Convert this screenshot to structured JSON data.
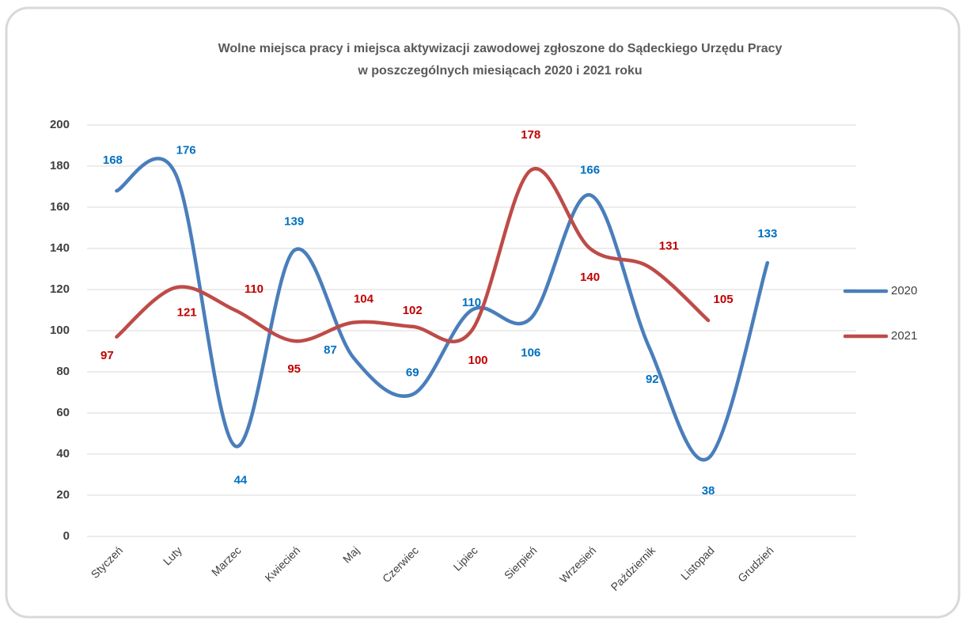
{
  "chart_data": {
    "type": "line",
    "title": [
      "Wolne miejsca pracy i miejsca aktywizacji zawodowej zgłoszone do Sądeckiego Urzędu Pracy",
      "w poszczególnych miesiącach 2020 i  2021 roku"
    ],
    "categories": [
      "Styczeń",
      "Luty",
      "Marzec",
      "Kwiecień",
      "Maj",
      "Czerwiec",
      "Lipiec",
      "Sierpień",
      "Wrzesień",
      "Październik",
      "Listopad",
      "Grudzień",
      null
    ],
    "series": [
      {
        "name": "2020",
        "color": "#4a7ebb",
        "label_color": "#0070c0",
        "values": [
          168,
          176,
          44,
          139,
          87,
          69,
          110,
          106,
          166,
          92,
          38,
          133,
          null
        ]
      },
      {
        "name": "2021",
        "color": "#be4b48",
        "label_color": "#c00000",
        "values": [
          97,
          121,
          110,
          95,
          104,
          102,
          100,
          178,
          140,
          131,
          105,
          null,
          null
        ]
      }
    ],
    "ylim": [
      0,
      200
    ],
    "yticks": [
      0,
      20,
      40,
      60,
      80,
      100,
      120,
      140,
      160,
      180,
      200
    ],
    "grid": true,
    "smooth": true,
    "legend": "right"
  }
}
